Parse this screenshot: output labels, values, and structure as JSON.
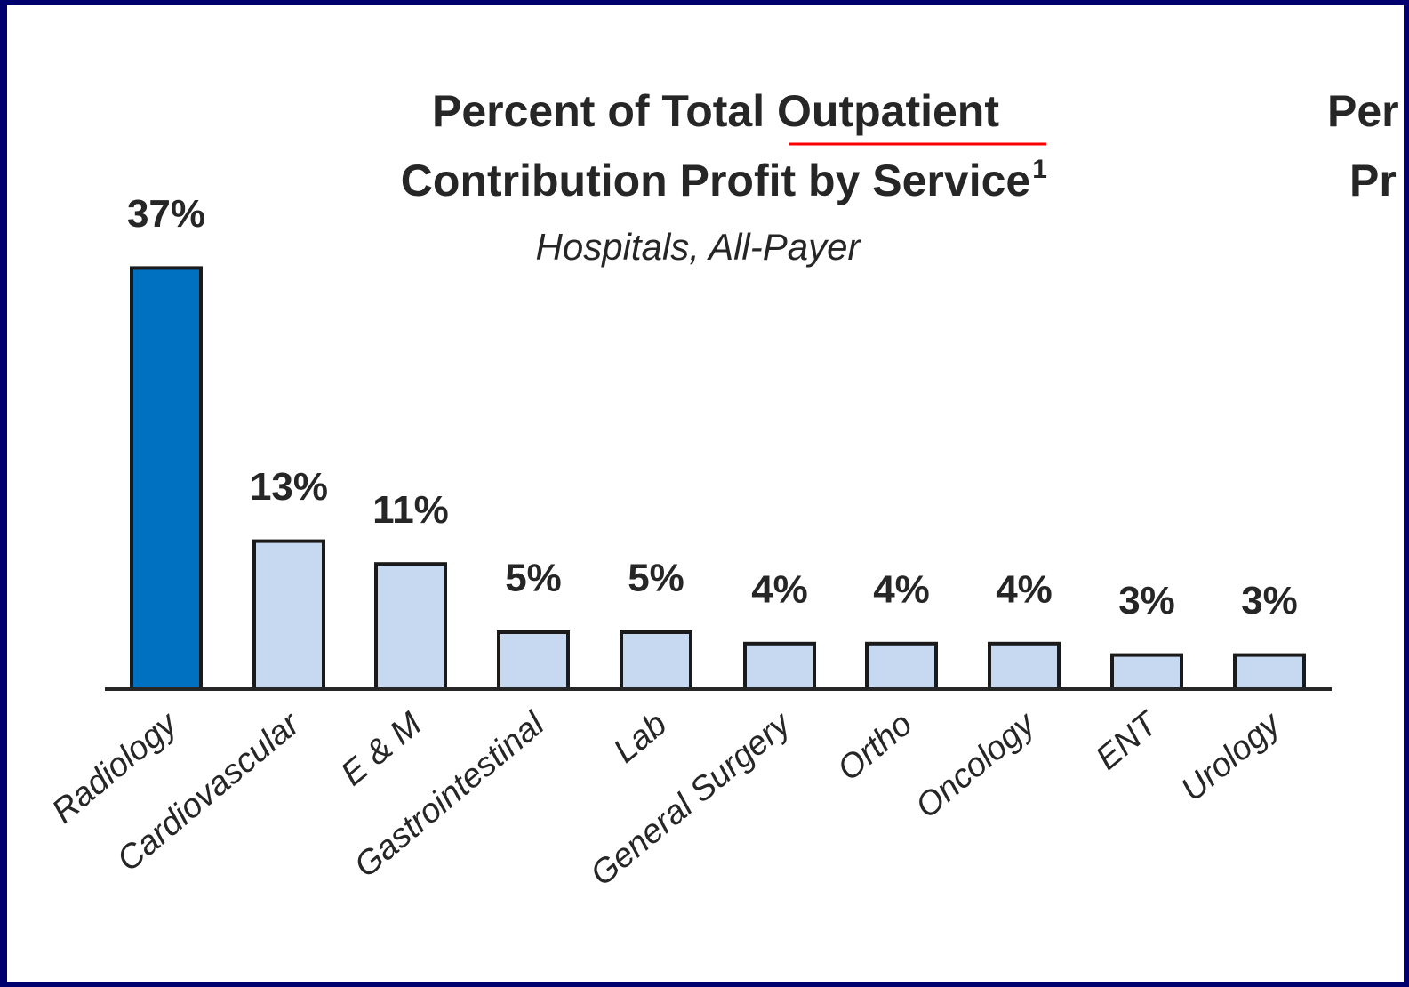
{
  "chart_data": {
    "type": "bar",
    "title_lines": [
      "Percent of Total Outpatient",
      "Contribution Profit by Service"
    ],
    "title_note": "1",
    "subtitle": "Hospitals, All-Payer",
    "categories": [
      "Radiology",
      "Cardiovascular",
      "E & M",
      "Gastrointestinal",
      "Lab",
      "General Surgery",
      "Ortho",
      "Oncology",
      "ENT",
      "Urology"
    ],
    "values": [
      37,
      13,
      11,
      5,
      5,
      4,
      4,
      4,
      3,
      3
    ],
    "value_labels": [
      "37%",
      "13%",
      "11%",
      "5%",
      "5%",
      "4%",
      "4%",
      "4%",
      "3%",
      "3%"
    ],
    "colors": [
      "#0070c0",
      "#c6d9f1",
      "#c6d9f1",
      "#c6d9f1",
      "#c6d9f1",
      "#c6d9f1",
      "#c6d9f1",
      "#c6d9f1",
      "#c6d9f1",
      "#c6d9f1"
    ],
    "clipped_title_lines": [
      "Per",
      "Pr"
    ]
  }
}
